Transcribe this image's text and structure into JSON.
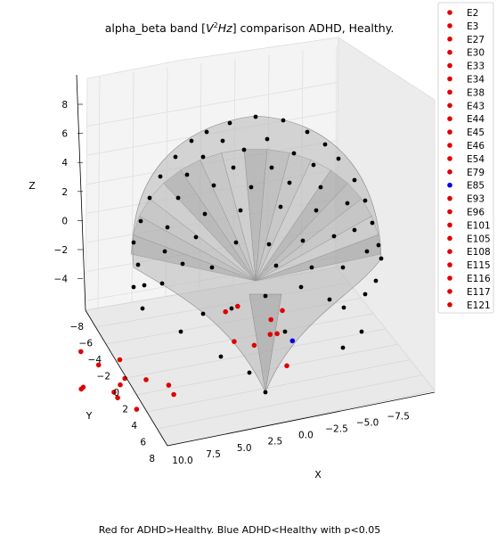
{
  "chart_data": {
    "type": "scatter",
    "title": "alpha_beta band [V²Hz] comparison ADHD, Healthy.",
    "caption": "Red for ADHD>Healthy. Blue ADHD<Healthy with p<0.05",
    "xlabel": "X",
    "ylabel": "Y",
    "zlabel": "Z",
    "xlim": [
      10.0,
      -9.0
    ],
    "ylim": [
      -8,
      8
    ],
    "zlim": [
      -6,
      9
    ],
    "x_ticks": [
      "10.0",
      "7.5",
      "5.0",
      "2.5",
      "0.0",
      "−2.5",
      "−5.0",
      "−7.5"
    ],
    "y_ticks": [
      "−8",
      "−6",
      "−4",
      "−2",
      "0",
      "2",
      "4",
      "6",
      "8"
    ],
    "z_ticks": [
      "8",
      "6",
      "4",
      "2",
      "0",
      "−2",
      "−4"
    ],
    "grid": true,
    "legend_position": "top-right",
    "colors": {
      "red": "#e00000",
      "blue": "#0000e6",
      "black": "#000000",
      "mesh": "#9e9e9e"
    },
    "series": [
      {
        "name": "E2",
        "color": "red",
        "x": 0.9,
        "y": -7.0,
        "z": 5.6
      },
      {
        "name": "E3",
        "color": "red",
        "x": 1.9,
        "y": -5.2,
        "z": 6.8
      },
      {
        "name": "E27",
        "color": "red",
        "x": 5.9,
        "y": -4.9,
        "z": 2.2
      },
      {
        "name": "E30",
        "color": "red",
        "x": 6.4,
        "y": -2.8,
        "z": 1.2
      },
      {
        "name": "E33",
        "color": "red",
        "x": 6.8,
        "y": 0.4,
        "z": -2.2
      },
      {
        "name": "E34",
        "color": "red",
        "x": 7.6,
        "y": -1.6,
        "z": 0.2
      },
      {
        "name": "E38",
        "color": "red",
        "x": 5.3,
        "y": 0.8,
        "z": -3.5
      },
      {
        "name": "E43",
        "color": "red",
        "x": 7.6,
        "y": 3.5,
        "z": -3.5
      },
      {
        "name": "E44",
        "color": "red",
        "x": 6.4,
        "y": 6.0,
        "z": -3.0
      },
      {
        "name": "E45",
        "color": "red",
        "x": 8.4,
        "y": 2.2,
        "z": -2.6
      },
      {
        "name": "E46",
        "color": "red",
        "x": 5.2,
        "y": 6.0,
        "z": -4.1
      },
      {
        "name": "E54",
        "color": "red",
        "x": 3.3,
        "y": 6.8,
        "z": -4.6
      },
      {
        "name": "E79",
        "color": "red",
        "x": -1.6,
        "y": 0.0,
        "z": 3.0
      },
      {
        "name": "E85",
        "color": "blue",
        "x": -3.4,
        "y": -3.8,
        "z": 3.0
      },
      {
        "name": "E93",
        "color": "red",
        "x": -1.0,
        "y": -5.5,
        "z": 5.0
      },
      {
        "name": "E96",
        "color": "red",
        "x": -4.5,
        "y": 1.2,
        "z": 0.8
      },
      {
        "name": "E101",
        "color": "red",
        "x": -3.2,
        "y": 3.8,
        "z": -2.3
      },
      {
        "name": "E105",
        "color": "red",
        "x": -4.2,
        "y": -1.0,
        "z": 3.0
      },
      {
        "name": "E108",
        "color": "red",
        "x": 1.3,
        "y": 3.5,
        "z": -5.0
      },
      {
        "name": "E115",
        "color": "red",
        "x": 4.6,
        "y": 5.2,
        "z": -5.5
      },
      {
        "name": "E116",
        "color": "red",
        "x": 3.6,
        "y": 5.6,
        "z": -5.0
      },
      {
        "name": "E117",
        "color": "red",
        "x": -6.2,
        "y": 2.6,
        "z": -3.6
      },
      {
        "name": "E121",
        "color": "red",
        "x": -5.4,
        "y": 2.2,
        "z": -1.0
      }
    ]
  }
}
